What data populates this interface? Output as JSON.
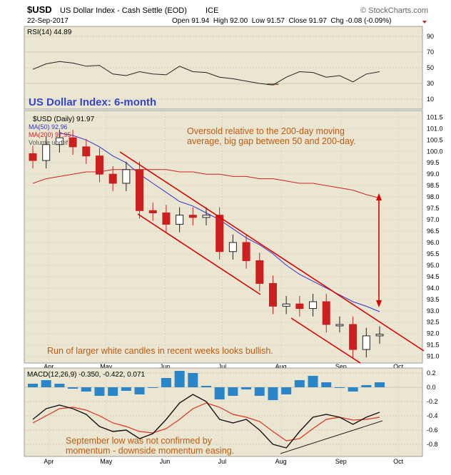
{
  "header": {
    "symbol": "$USD",
    "name": "US Dollar Index - Cash Settle (EOD)",
    "exchange": "ICE",
    "date": "22-Sep-2017",
    "ohlc": "Open 91.94  High 92.00  Low 91.57  Close 91.97  Chg -0.08 (-0.09%)",
    "brand": "© StockCharts.com"
  },
  "colors": {
    "panel_bg": "#ebe6d2",
    "grid": "#c8c2a8",
    "ma50": "#3333cc",
    "ma200": "#cc2222",
    "candle_down": "#cc1f1f",
    "candle_up": "#222222",
    "annotation_blue": "#3344cc",
    "annotation_orange": "#c05a10",
    "channel_red": "#dd0000",
    "macd_hist": "#2a86c8",
    "rsi_line": "#222222"
  },
  "chart_data": [
    {
      "type": "line",
      "panel": "RSI",
      "legend": "RSI(14) 44.89",
      "yticks": [
        10,
        30,
        50,
        70,
        90
      ],
      "ylim": [
        0,
        100
      ],
      "x": [
        "2017-03-24",
        "2017-03-31",
        "2017-04-07",
        "2017-04-14",
        "2017-04-21",
        "2017-04-28",
        "2017-05-05",
        "2017-05-12",
        "2017-05-19",
        "2017-05-26",
        "2017-06-02",
        "2017-06-09",
        "2017-06-16",
        "2017-06-23",
        "2017-06-30",
        "2017-07-07",
        "2017-07-14",
        "2017-07-21",
        "2017-07-28",
        "2017-08-04",
        "2017-08-11",
        "2017-08-18",
        "2017-08-25",
        "2017-09-01",
        "2017-09-08",
        "2017-09-15",
        "2017-09-22"
      ],
      "values": [
        48,
        55,
        58,
        56,
        52,
        53,
        42,
        40,
        45,
        42,
        41,
        52,
        45,
        44,
        38,
        36,
        33,
        30,
        28,
        38,
        45,
        44,
        38,
        40,
        32,
        42,
        45
      ]
    },
    {
      "type": "line",
      "panel": "price",
      "title": "US Dollar Index: 6-month",
      "legend": [
        "$USD (Daily) 91.97",
        "MA(50) 92.96",
        "MA(200) 97.95",
        "Volume undef"
      ],
      "x_ticks": [
        "Apr",
        "May",
        "Jun",
        "Jul",
        "Aug",
        "Sep",
        "Oct"
      ],
      "yticks": [
        91.0,
        91.5,
        92.0,
        92.5,
        93.0,
        93.5,
        94.0,
        94.5,
        95.0,
        95.5,
        96.0,
        96.5,
        97.0,
        97.5,
        98.0,
        98.5,
        99.0,
        99.5,
        100.0,
        100.5,
        101.0,
        101.5
      ],
      "ylim": [
        90.8,
        101.7
      ],
      "x": [
        "2017-03-24",
        "2017-03-31",
        "2017-04-07",
        "2017-04-14",
        "2017-04-21",
        "2017-04-28",
        "2017-05-05",
        "2017-05-12",
        "2017-05-19",
        "2017-05-26",
        "2017-06-02",
        "2017-06-09",
        "2017-06-16",
        "2017-06-23",
        "2017-06-30",
        "2017-07-07",
        "2017-07-14",
        "2017-07-21",
        "2017-07-28",
        "2017-08-04",
        "2017-08-11",
        "2017-08-18",
        "2017-08-25",
        "2017-09-01",
        "2017-09-08",
        "2017-09-15",
        "2017-09-22"
      ],
      "series": [
        {
          "name": "$USD (Daily) 91.97",
          "values": [
            99.6,
            100.3,
            100.6,
            100.2,
            99.8,
            99.0,
            98.6,
            99.2,
            97.4,
            97.3,
            96.8,
            97.2,
            97.1,
            97.2,
            95.6,
            96.0,
            95.2,
            94.2,
            93.2,
            93.3,
            93.1,
            93.4,
            92.4,
            92.4,
            91.3,
            91.9,
            91.97
          ]
        },
        {
          "name": "MA(50) 92.96",
          "values": [
            101.2,
            101.0,
            100.8,
            100.7,
            100.5,
            100.2,
            99.8,
            99.5,
            99.0,
            98.6,
            98.2,
            97.8,
            97.6,
            97.3,
            97.0,
            96.6,
            96.2,
            95.9,
            95.5,
            95.0,
            94.6,
            94.3,
            94.0,
            93.7,
            93.4,
            93.2,
            92.96
          ]
        },
        {
          "name": "MA(200) 97.95",
          "values": [
            98.6,
            98.8,
            98.9,
            99.0,
            99.1,
            99.1,
            99.2,
            99.2,
            99.2,
            99.2,
            99.2,
            99.1,
            99.1,
            99.0,
            99.0,
            98.9,
            98.9,
            98.8,
            98.8,
            98.7,
            98.6,
            98.6,
            98.5,
            98.4,
            98.3,
            98.1,
            97.95
          ]
        }
      ],
      "annotations": [
        "Oversold relative to the 200-day moving average, big gap between 50 and 200-day.",
        "Run of larger white candles in recent weeks looks bullish."
      ]
    },
    {
      "type": "line",
      "panel": "MACD",
      "legend": "MACD(12,26,9) -0.350, -0.422, 0.071",
      "yticks": [
        -0.8,
        -0.6,
        -0.4,
        -0.2,
        0.0,
        0.2
      ],
      "ylim": [
        -0.95,
        0.25
      ],
      "x_ticks": [
        "Apr",
        "May",
        "Jun",
        "Jul",
        "Aug",
        "Sep",
        "Oct"
      ],
      "x": [
        "2017-03-24",
        "2017-03-31",
        "2017-04-07",
        "2017-04-14",
        "2017-04-21",
        "2017-04-28",
        "2017-05-05",
        "2017-05-12",
        "2017-05-19",
        "2017-05-26",
        "2017-06-02",
        "2017-06-09",
        "2017-06-16",
        "2017-06-23",
        "2017-06-30",
        "2017-07-07",
        "2017-07-14",
        "2017-07-21",
        "2017-07-28",
        "2017-08-04",
        "2017-08-11",
        "2017-08-18",
        "2017-08-25",
        "2017-09-01",
        "2017-09-08",
        "2017-09-15",
        "2017-09-22"
      ],
      "series": [
        {
          "name": "MACD",
          "values": [
            -0.45,
            -0.3,
            -0.25,
            -0.3,
            -0.38,
            -0.55,
            -0.62,
            -0.6,
            -0.72,
            -0.65,
            -0.45,
            -0.22,
            -0.1,
            -0.2,
            -0.45,
            -0.5,
            -0.45,
            -0.6,
            -0.8,
            -0.85,
            -0.62,
            -0.42,
            -0.38,
            -0.42,
            -0.52,
            -0.42,
            -0.35
          ]
        },
        {
          "name": "Signal",
          "values": [
            -0.5,
            -0.4,
            -0.3,
            -0.28,
            -0.32,
            -0.4,
            -0.5,
            -0.55,
            -0.62,
            -0.64,
            -0.58,
            -0.45,
            -0.3,
            -0.22,
            -0.28,
            -0.38,
            -0.42,
            -0.48,
            -0.62,
            -0.75,
            -0.72,
            -0.58,
            -0.45,
            -0.42,
            -0.46,
            -0.45,
            -0.42
          ]
        },
        {
          "name": "Histogram",
          "values": [
            0.05,
            0.1,
            0.05,
            -0.02,
            -0.06,
            -0.12,
            -0.12,
            -0.05,
            -0.1,
            -0.01,
            0.13,
            0.23,
            0.2,
            0.02,
            -0.17,
            -0.12,
            -0.03,
            -0.12,
            -0.18,
            -0.1,
            0.1,
            0.16,
            0.07,
            0.0,
            -0.06,
            0.03,
            0.07
          ]
        }
      ],
      "annotations": [
        "September low was not confirmed by momentum - downside momentum easing."
      ]
    }
  ]
}
